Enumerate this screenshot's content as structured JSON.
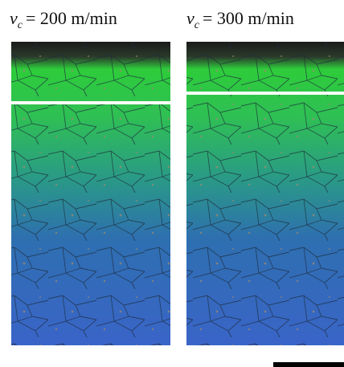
{
  "panels": [
    {
      "label": {
        "symbol": "v",
        "subscript": "c",
        "rest": "= 200 m/min"
      }
    },
    {
      "label": {
        "symbol": "v",
        "subscript": "c",
        "rest": "= 300 m/min"
      }
    }
  ]
}
